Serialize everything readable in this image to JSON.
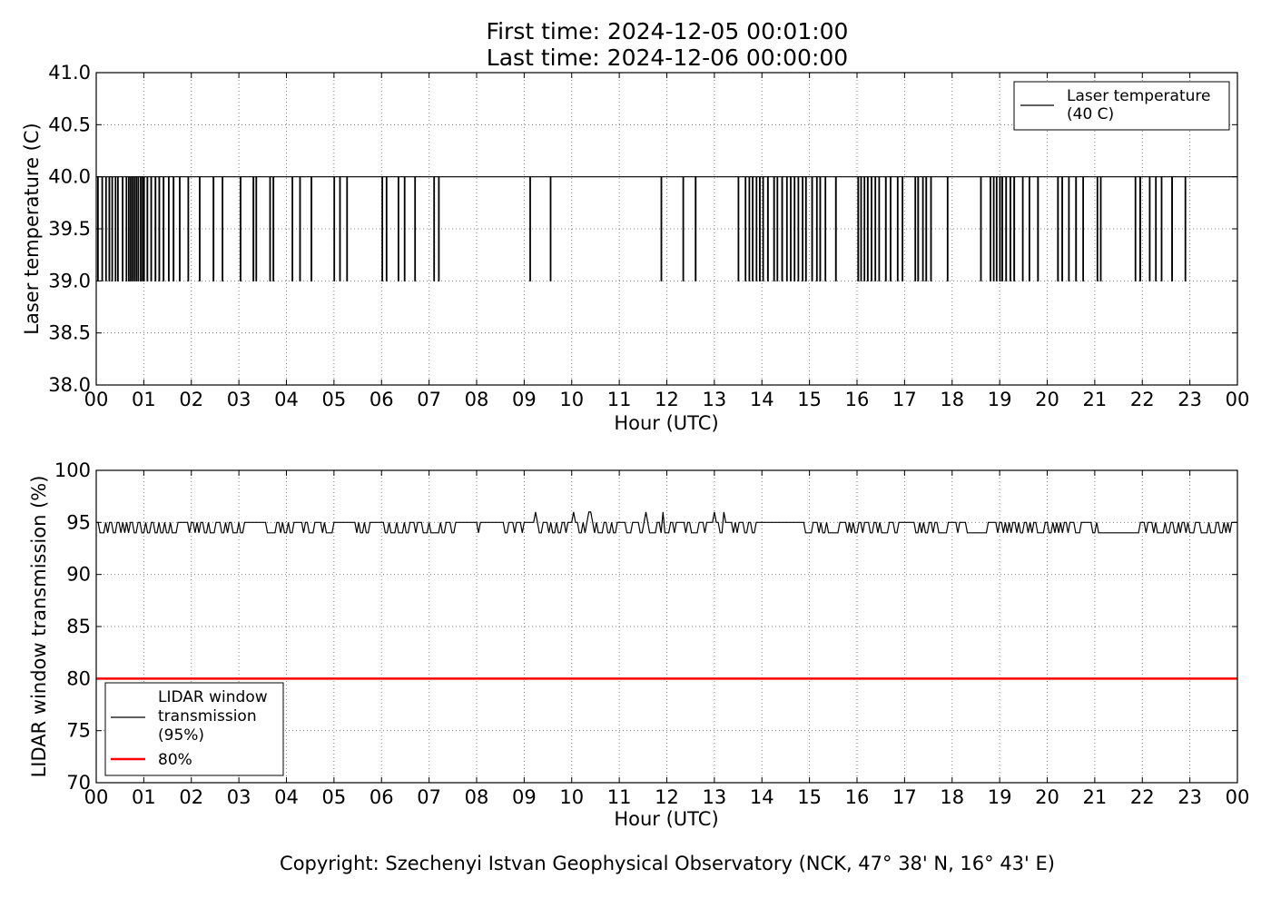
{
  "title": {
    "line1": "First time: 2024-12-05 00:01:00",
    "line2": "Last time: 2024-12-06 00:00:00"
  },
  "footer": {
    "copyright": "Copyright: Szechenyi Istvan Geophysical Observatory (NCK, 47° 38' N, 16° 43' E)"
  },
  "colors": {
    "series": "#000000",
    "threshold": "#ff0000",
    "grid": "#808080"
  },
  "chart_data": [
    {
      "type": "line",
      "title": "",
      "xlabel": "Hour (UTC)",
      "ylabel": "Laser temperature (C)",
      "xlim": [
        0,
        24
      ],
      "ylim": [
        38.0,
        41.0
      ],
      "x_ticks": [
        "00",
        "01",
        "02",
        "03",
        "04",
        "05",
        "06",
        "07",
        "08",
        "09",
        "10",
        "11",
        "12",
        "13",
        "14",
        "15",
        "16",
        "17",
        "18",
        "19",
        "20",
        "21",
        "22",
        "23",
        "00"
      ],
      "y_ticks": [
        "38.0",
        "38.5",
        "39.0",
        "39.5",
        "40.0",
        "40.5",
        "41.0"
      ],
      "grid": true,
      "legend_position": "top-right",
      "series": [
        {
          "name": "Laser temperature\n(40 C)",
          "baseline": 40.0,
          "low": 39.0,
          "drops_to_39_at_hours": [
            0.03,
            0.12,
            0.2,
            0.27,
            0.33,
            0.4,
            0.45,
            0.55,
            0.63,
            0.68,
            0.72,
            0.76,
            0.8,
            0.84,
            0.88,
            0.93,
            0.97,
            1.0,
            1.07,
            1.15,
            1.24,
            1.32,
            1.41,
            1.52,
            1.62,
            1.75,
            1.93,
            2.17,
            2.46,
            2.65,
            3.03,
            3.3,
            3.36,
            3.65,
            3.72,
            4.12,
            4.28,
            4.52,
            5.0,
            5.12,
            5.27,
            6.01,
            6.1,
            6.35,
            6.48,
            6.7,
            7.1,
            7.2,
            9.12,
            9.55,
            11.88,
            12.34,
            12.6,
            13.5,
            13.65,
            13.73,
            13.8,
            13.88,
            13.95,
            14.02,
            14.12,
            14.25,
            14.32,
            14.42,
            14.52,
            14.6,
            14.68,
            14.76,
            14.85,
            14.92,
            15.05,
            15.15,
            15.22,
            15.33,
            15.55,
            16.02,
            16.08,
            16.15,
            16.22,
            16.3,
            16.38,
            16.46,
            16.6,
            16.7,
            16.85,
            16.95,
            17.22,
            17.28,
            17.38,
            17.45,
            17.55,
            17.9,
            18.6,
            18.8,
            18.87,
            18.93,
            19.0,
            19.05,
            19.13,
            19.22,
            19.3,
            19.48,
            19.62,
            19.8,
            20.22,
            20.31,
            20.45,
            20.6,
            20.75,
            21.05,
            21.12,
            21.85,
            21.95,
            22.15,
            22.28,
            22.4,
            22.62,
            22.9
          ]
        }
      ]
    },
    {
      "type": "line",
      "title": "",
      "xlabel": "Hour (UTC)",
      "ylabel": "LIDAR window transmission (%)",
      "xlim": [
        0,
        24
      ],
      "ylim": [
        70,
        100
      ],
      "x_ticks": [
        "00",
        "01",
        "02",
        "03",
        "04",
        "05",
        "06",
        "07",
        "08",
        "09",
        "10",
        "11",
        "12",
        "13",
        "14",
        "15",
        "16",
        "17",
        "18",
        "19",
        "20",
        "21",
        "22",
        "23",
        "00"
      ],
      "y_ticks": [
        "70",
        "75",
        "80",
        "85",
        "90",
        "95",
        "100"
      ],
      "grid": true,
      "legend_position": "bottom-left",
      "series": [
        {
          "name": "LIDAR window\ntransmission\n(95%)",
          "baseline": 95,
          "low": 94,
          "spikes_to_96_at_hours": [
            9.25,
            10.05,
            10.35,
            10.4,
            11.55,
            11.92,
            12.98,
            13.18
          ],
          "dense_dips_to_94": [
            [
              0,
              1.7
            ],
            [
              1.9,
              3.4
            ],
            [
              3.55,
              5.1
            ],
            [
              5.45,
              5.75
            ],
            [
              6.05,
              7.6
            ],
            [
              7.75,
              8.1
            ],
            [
              8.3,
              9.05
            ],
            [
              9.3,
              9.9
            ],
            [
              10.15,
              10.95
            ],
            [
              11.1,
              11.5
            ],
            [
              11.6,
              12.2
            ],
            [
              12.3,
              12.8
            ],
            [
              13.1,
              13.9
            ],
            [
              14.55,
              14.7
            ],
            [
              14.9,
              17.1
            ],
            [
              17.2,
              17.9
            ],
            [
              18.1,
              20.7
            ],
            [
              20.8,
              21.0
            ],
            [
              22.0,
              24.0
            ]
          ],
          "steady_94_ranges": [
            [
              21.05,
              21.95
            ]
          ]
        },
        {
          "name": "80%",
          "value": 80
        }
      ]
    }
  ]
}
